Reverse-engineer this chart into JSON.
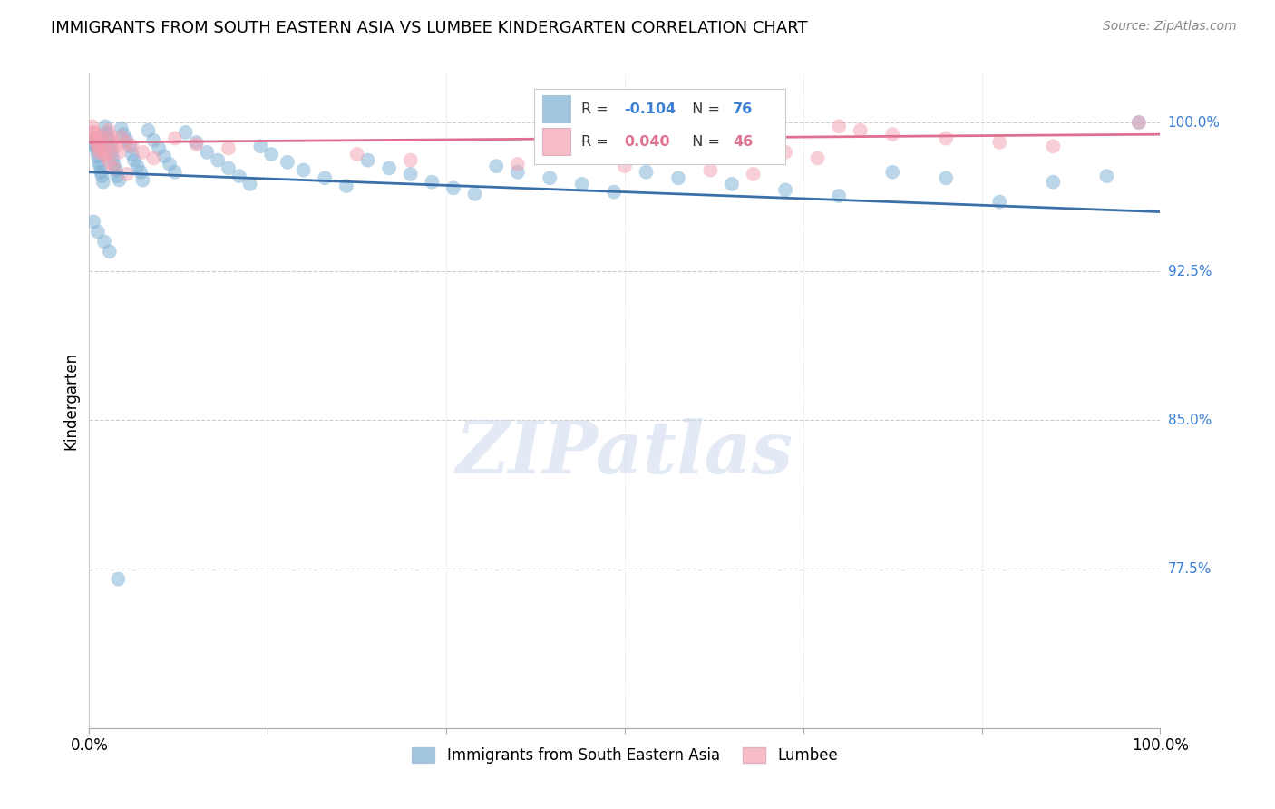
{
  "title": "IMMIGRANTS FROM SOUTH EASTERN ASIA VS LUMBEE KINDERGARTEN CORRELATION CHART",
  "source": "Source: ZipAtlas.com",
  "ylabel": "Kindergarten",
  "ytick_labels": [
    "100.0%",
    "92.5%",
    "85.0%",
    "77.5%"
  ],
  "ytick_values": [
    1.0,
    0.925,
    0.85,
    0.775
  ],
  "xlim": [
    0.0,
    1.0
  ],
  "ylim": [
    0.695,
    1.025
  ],
  "legend_blue_series": "Immigrants from South Eastern Asia",
  "legend_pink_series": "Lumbee",
  "blue_color": "#7bafd4",
  "pink_color": "#f4a0b0",
  "trendline_blue_color": "#3a6fa8",
  "trendline_pink_color": "#e07090",
  "blue_R": "-0.104",
  "blue_N": "76",
  "pink_R": "0.040",
  "pink_N": "46",
  "blue_trend_x0": 0.0,
  "blue_trend_x1": 1.0,
  "blue_trend_y0": 0.975,
  "blue_trend_y1": 0.955,
  "pink_trend_x0": 0.0,
  "pink_trend_x1": 1.0,
  "pink_trend_y0": 0.99,
  "pink_trend_y1": 0.994,
  "blue_scatter_x": [
    0.003,
    0.005,
    0.006,
    0.007,
    0.008,
    0.009,
    0.01,
    0.011,
    0.012,
    0.013,
    0.015,
    0.016,
    0.017,
    0.018,
    0.02,
    0.021,
    0.022,
    0.023,
    0.025,
    0.026,
    0.028,
    0.03,
    0.032,
    0.035,
    0.038,
    0.04,
    0.042,
    0.045,
    0.048,
    0.05,
    0.055,
    0.06,
    0.065,
    0.07,
    0.075,
    0.08,
    0.09,
    0.1,
    0.11,
    0.12,
    0.13,
    0.14,
    0.15,
    0.16,
    0.17,
    0.185,
    0.2,
    0.22,
    0.24,
    0.26,
    0.28,
    0.3,
    0.32,
    0.34,
    0.36,
    0.38,
    0.4,
    0.43,
    0.46,
    0.49,
    0.52,
    0.55,
    0.6,
    0.65,
    0.7,
    0.75,
    0.8,
    0.85,
    0.9,
    0.95,
    0.98,
    0.004,
    0.008,
    0.014,
    0.019,
    0.027
  ],
  "blue_scatter_y": [
    0.99,
    0.988,
    0.992,
    0.986,
    0.983,
    0.98,
    0.978,
    0.975,
    0.973,
    0.97,
    0.998,
    0.995,
    0.993,
    0.991,
    0.988,
    0.985,
    0.982,
    0.979,
    0.976,
    0.973,
    0.971,
    0.997,
    0.994,
    0.991,
    0.988,
    0.984,
    0.981,
    0.978,
    0.975,
    0.971,
    0.996,
    0.991,
    0.987,
    0.983,
    0.979,
    0.975,
    0.995,
    0.99,
    0.985,
    0.981,
    0.977,
    0.973,
    0.969,
    0.988,
    0.984,
    0.98,
    0.976,
    0.972,
    0.968,
    0.981,
    0.977,
    0.974,
    0.97,
    0.967,
    0.964,
    0.978,
    0.975,
    0.972,
    0.969,
    0.965,
    0.975,
    0.972,
    0.969,
    0.966,
    0.963,
    0.975,
    0.972,
    0.96,
    0.97,
    0.973,
    1.0,
    0.95,
    0.945,
    0.94,
    0.935,
    0.77
  ],
  "pink_scatter_x": [
    0.003,
    0.005,
    0.006,
    0.007,
    0.008,
    0.009,
    0.01,
    0.012,
    0.014,
    0.016,
    0.018,
    0.02,
    0.022,
    0.025,
    0.028,
    0.03,
    0.035,
    0.04,
    0.05,
    0.06,
    0.08,
    0.1,
    0.13,
    0.25,
    0.3,
    0.4,
    0.5,
    0.58,
    0.62,
    0.65,
    0.68,
    0.7,
    0.72,
    0.75,
    0.8,
    0.85,
    0.9,
    0.98,
    0.004,
    0.006,
    0.009,
    0.011,
    0.015,
    0.019,
    0.023,
    0.035
  ],
  "pink_scatter_y": [
    0.998,
    0.995,
    0.992,
    0.99,
    0.988,
    0.985,
    0.993,
    0.99,
    0.987,
    0.984,
    0.996,
    0.993,
    0.99,
    0.988,
    0.985,
    0.993,
    0.99,
    0.988,
    0.985,
    0.982,
    0.992,
    0.989,
    0.987,
    0.984,
    0.981,
    0.979,
    0.978,
    0.976,
    0.974,
    0.985,
    0.982,
    0.998,
    0.996,
    0.994,
    0.992,
    0.99,
    0.988,
    1.0,
    0.995,
    0.992,
    0.989,
    0.986,
    0.983,
    0.98,
    0.977,
    0.974
  ]
}
